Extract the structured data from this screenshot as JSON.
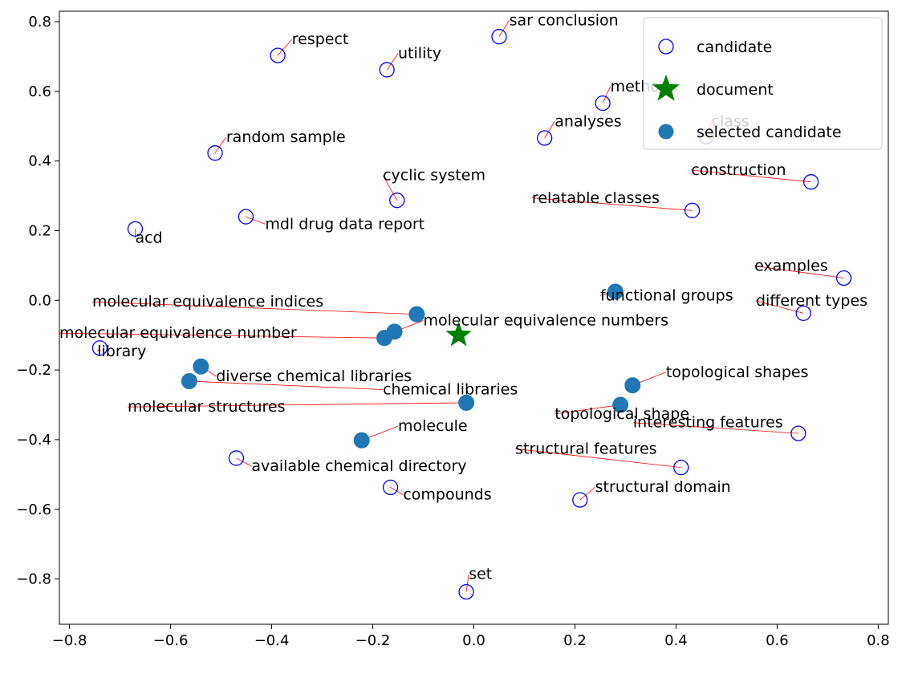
{
  "chart_data": {
    "type": "scatter",
    "xlim": [
      -0.82,
      0.82
    ],
    "ylim": [
      -0.93,
      0.83
    ],
    "xticks": [
      -0.8,
      -0.6,
      -0.4,
      -0.2,
      0.0,
      0.2,
      0.4,
      0.6,
      0.8
    ],
    "xtick_labels": [
      "−0.8",
      "−0.6",
      "−0.4",
      "−0.2",
      "0.0",
      "0.2",
      "0.4",
      "0.6",
      "0.8"
    ],
    "yticks": [
      -0.8,
      -0.6,
      -0.4,
      -0.2,
      0.0,
      0.2,
      0.4,
      0.6,
      0.8
    ],
    "ytick_labels": [
      "−0.8",
      "−0.6",
      "−0.4",
      "−0.2",
      "0.0",
      "0.2",
      "0.4",
      "0.6",
      "0.8"
    ],
    "grid": false,
    "legend_position": "top-right",
    "colors": {
      "candidate": "#0000ff",
      "document": "#008000",
      "selected": "#1f77b4",
      "arrow": "#ff0000"
    },
    "legend": [
      {
        "name": "candidate",
        "marker": "open-circle"
      },
      {
        "name": "document",
        "marker": "star"
      },
      {
        "name": "selected candidate",
        "marker": "filled-circle"
      }
    ],
    "document": {
      "x": -0.03,
      "y": -0.1
    },
    "candidates": [
      {
        "label": "respect",
        "x": -0.388,
        "y": 0.703,
        "tx": -0.36,
        "ty": 0.735
      },
      {
        "label": "utility",
        "x": -0.172,
        "y": 0.662,
        "tx": -0.15,
        "ty": 0.695
      },
      {
        "label": "sar conclusion",
        "x": 0.05,
        "y": 0.757,
        "tx": 0.07,
        "ty": 0.79
      },
      {
        "label": "methods",
        "x": 0.255,
        "y": 0.566,
        "tx": 0.27,
        "ty": 0.6
      },
      {
        "label": "class",
        "x": 0.46,
        "y": 0.47,
        "tx": 0.47,
        "ty": 0.5
      },
      {
        "label": "analyses",
        "x": 0.14,
        "y": 0.466,
        "tx": 0.16,
        "ty": 0.5
      },
      {
        "label": "random sample",
        "x": -0.512,
        "y": 0.423,
        "tx": -0.49,
        "ty": 0.455
      },
      {
        "label": "cyclic system",
        "x": -0.152,
        "y": 0.287,
        "tx": -0.18,
        "ty": 0.345
      },
      {
        "label": "construction",
        "x": 0.667,
        "y": 0.34,
        "tx": 0.43,
        "ty": 0.36
      },
      {
        "label": "relatable classes",
        "x": 0.432,
        "y": 0.258,
        "tx": 0.115,
        "ty": 0.28
      },
      {
        "label": "mdl drug data report",
        "x": -0.451,
        "y": 0.24,
        "tx": -0.413,
        "ty": 0.205
      },
      {
        "label": "acd",
        "x": -0.67,
        "y": 0.205,
        "tx": -0.67,
        "ty": 0.165
      },
      {
        "label": "examples",
        "x": 0.732,
        "y": 0.064,
        "tx": 0.555,
        "ty": 0.085
      },
      {
        "label": "different types",
        "x": 0.652,
        "y": -0.037,
        "tx": 0.558,
        "ty": -0.015
      },
      {
        "label": "library",
        "x": -0.74,
        "y": -0.137,
        "tx": -0.745,
        "ty": -0.16
      },
      {
        "label": "available chemical directory",
        "x": -0.47,
        "y": -0.453,
        "tx": -0.44,
        "ty": -0.49
      },
      {
        "label": "compounds",
        "x": -0.165,
        "y": -0.537,
        "tx": -0.14,
        "ty": -0.572
      },
      {
        "label": "interesting features",
        "x": 0.642,
        "y": -0.382,
        "tx": 0.315,
        "ty": -0.365
      },
      {
        "label": "structural features",
        "x": 0.41,
        "y": -0.48,
        "tx": 0.082,
        "ty": -0.44
      },
      {
        "label": "structural domain",
        "x": 0.21,
        "y": -0.573,
        "tx": 0.24,
        "ty": -0.55
      },
      {
        "label": "set",
        "x": -0.015,
        "y": -0.837,
        "tx": -0.01,
        "ty": -0.8
      }
    ],
    "selected": [
      {
        "label": "molecular equivalence indices",
        "x": -0.113,
        "y": -0.04,
        "tx": -0.755,
        "ty": -0.018
      },
      {
        "label": "molecular equivalence numbers",
        "x": -0.157,
        "y": -0.09,
        "tx": -0.1,
        "ty": -0.072
      },
      {
        "label": "molecular equivalence number",
        "x": -0.177,
        "y": -0.108,
        "tx": -0.82,
        "ty": -0.108
      },
      {
        "label": "functional groups",
        "x": 0.28,
        "y": 0.025,
        "tx": 0.25,
        "ty": 0.0
      },
      {
        "label": "diverse chemical libraries",
        "x": -0.54,
        "y": -0.19,
        "tx": -0.51,
        "ty": -0.232
      },
      {
        "label": "chemical libraries",
        "x": -0.563,
        "y": -0.232,
        "tx": -0.18,
        "ty": -0.27
      },
      {
        "label": "molecular structures",
        "x": -0.015,
        "y": -0.294,
        "tx": -0.685,
        "ty": -0.32
      },
      {
        "label": "topological shapes",
        "x": 0.314,
        "y": -0.244,
        "tx": 0.38,
        "ty": -0.22
      },
      {
        "label": "topological shape",
        "x": 0.29,
        "y": -0.3,
        "tx": 0.16,
        "ty": -0.34
      },
      {
        "label": "molecule",
        "x": -0.222,
        "y": -0.402,
        "tx": -0.15,
        "ty": -0.375
      }
    ]
  }
}
